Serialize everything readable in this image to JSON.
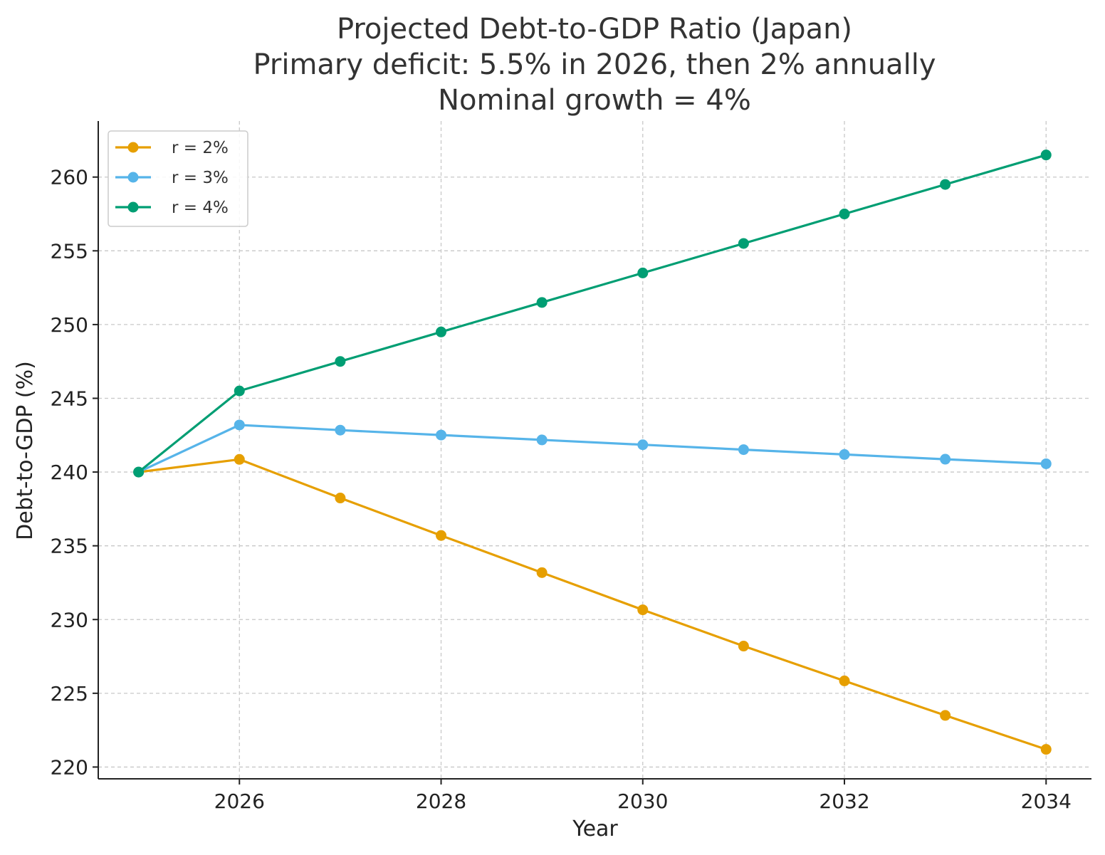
{
  "chart_data": {
    "type": "line",
    "title_lines": [
      "Projected Debt-to-GDP Ratio (Japan)",
      "Primary deficit: 5.5% in 2026, then 2% annually",
      "Nominal growth = 4%"
    ],
    "xlabel": "Year",
    "ylabel": "Debt-to-GDP (%)",
    "x": [
      2025,
      2026,
      2027,
      2028,
      2029,
      2030,
      2031,
      2032,
      2033,
      2034
    ],
    "xlim": [
      2024.6,
      2034.45
    ],
    "ylim": [
      219.2,
      263.8
    ],
    "xticks": [
      2026,
      2028,
      2030,
      2032,
      2034
    ],
    "yticks": [
      220,
      225,
      230,
      235,
      240,
      245,
      250,
      255,
      260
    ],
    "grid": true,
    "legend_position": "upper-left",
    "series": [
      {
        "name": "r = 2%",
        "color": "#E69F00",
        "values": [
          240.0,
          240.86,
          238.24,
          235.7,
          233.18,
          230.66,
          228.2,
          225.84,
          223.5,
          221.2
        ]
      },
      {
        "name": "r = 3%",
        "color": "#56B4E9",
        "values": [
          240.0,
          243.19,
          242.84,
          242.51,
          242.18,
          241.85,
          241.52,
          241.19,
          240.87,
          240.56
        ]
      },
      {
        "name": "r = 4%",
        "color": "#009E73",
        "values": [
          240.0,
          245.5,
          247.5,
          249.5,
          251.5,
          253.5,
          255.5,
          257.5,
          259.5,
          261.5
        ]
      }
    ]
  }
}
